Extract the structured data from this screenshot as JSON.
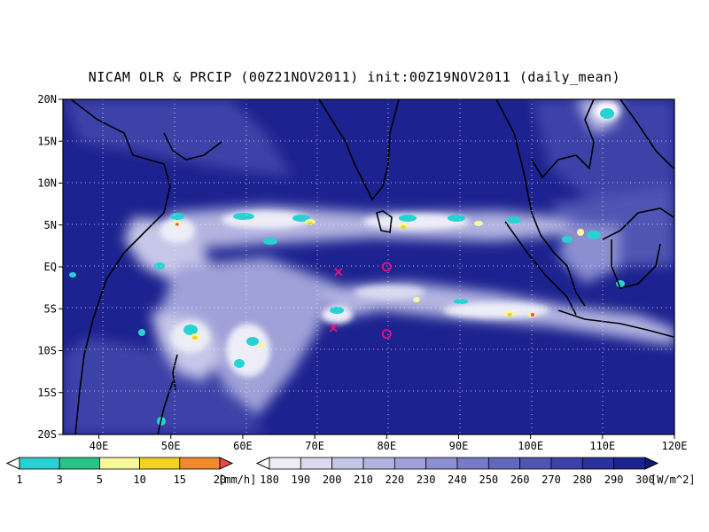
{
  "title": "NICAM OLR & PRCIP (00Z21NOV2011) init:00Z19NOV2011 (daily_mean)",
  "map": {
    "lon_range": [
      35,
      120
    ],
    "lat_range": [
      -20,
      20
    ],
    "lat_labels": [
      "20N",
      "15N",
      "10N",
      "5N",
      "EQ",
      "5S",
      "10S",
      "15S",
      "20S"
    ],
    "lon_labels": [
      "40E",
      "50E",
      "60E",
      "70E",
      "80E",
      "90E",
      "100E",
      "110E",
      "120E"
    ],
    "grid": true,
    "markers": [
      {
        "symbol": "x",
        "lon": 73.3,
        "lat": -0.6,
        "color": "#e0107a"
      },
      {
        "symbol": "x",
        "lon": 72.6,
        "lat": -7.3,
        "color": "#e0107a"
      },
      {
        "symbol": "o",
        "lon": 80.0,
        "lat": 0.0,
        "color": "#e0107a"
      },
      {
        "symbol": "o",
        "lon": 80.0,
        "lat": -8.0,
        "color": "#e0107a"
      }
    ]
  },
  "precip_colorbar": {
    "labels": [
      "1",
      "3",
      "5",
      "10",
      "15",
      "20"
    ],
    "unit": "[mm/h]",
    "colors": [
      "#ffffff",
      "#27d2d2",
      "#27c48a",
      "#f8f89a",
      "#f3d320",
      "#f08a2c",
      "#f04848"
    ]
  },
  "olr_colorbar": {
    "labels": [
      "180",
      "190",
      "200",
      "210",
      "220",
      "230",
      "240",
      "250",
      "260",
      "270",
      "280",
      "290",
      "300"
    ],
    "unit": "[W/m^2]",
    "colors": [
      "#ffffff",
      "#ededf8",
      "#d9daf0",
      "#c6c7e8",
      "#b2b4e0",
      "#9fa1d8",
      "#8b8ed0",
      "#777bc6",
      "#6468bd",
      "#5055b2",
      "#3c42a8",
      "#2a309c",
      "#1c228f",
      "#121882"
    ]
  }
}
